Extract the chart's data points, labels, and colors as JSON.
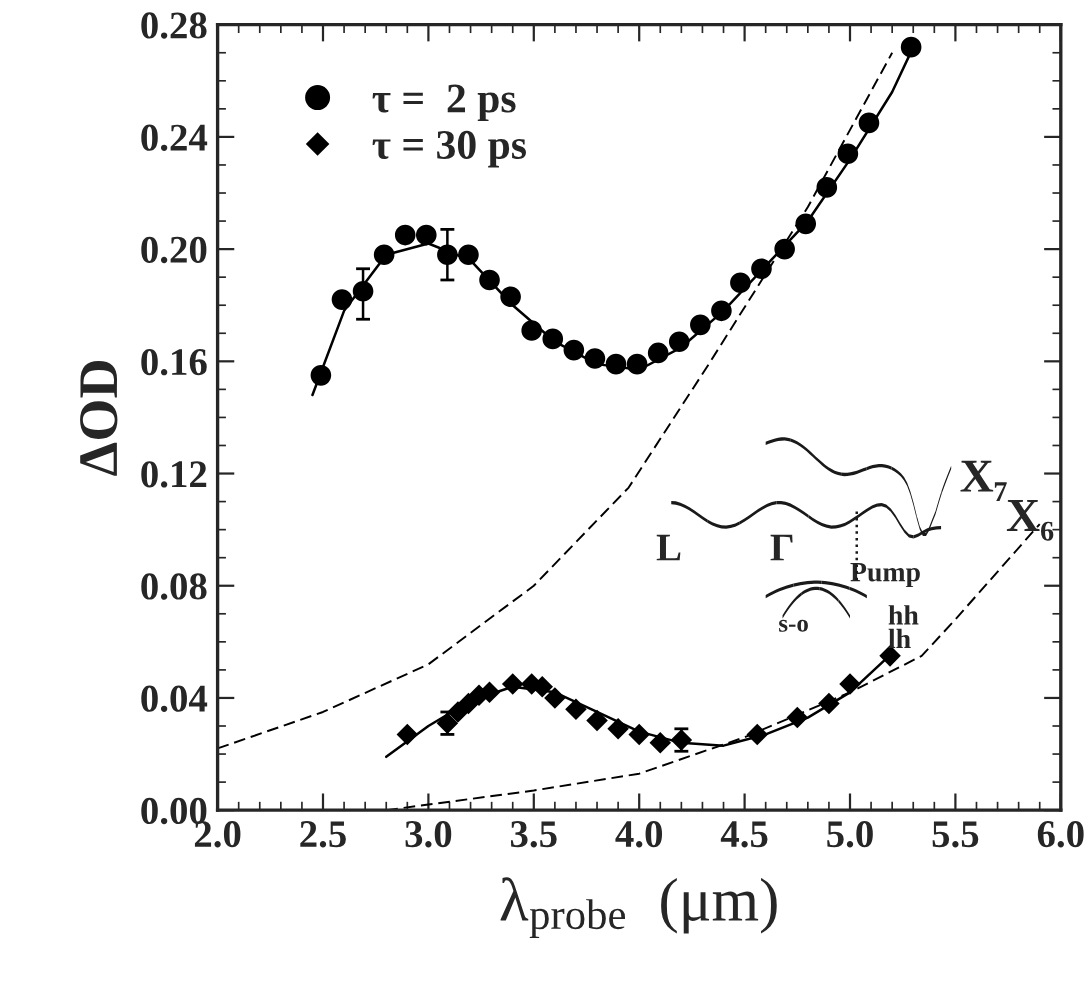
{
  "chart_data": {
    "type": "scatter",
    "xlabel": "λ$_{probe}$  (μm)",
    "ylabel": "ΔOD",
    "xlim": [
      2.0,
      6.0
    ],
    "ylim": [
      0.0,
      0.28
    ],
    "xticks": [
      {
        "value": 2.0,
        "label": "2.0"
      },
      {
        "value": 2.5,
        "label": "2.5"
      },
      {
        "value": 3.0,
        "label": "3.0"
      },
      {
        "value": 3.5,
        "label": "3.5"
      },
      {
        "value": 4.0,
        "label": "4.0"
      },
      {
        "value": 4.5,
        "label": "4.5"
      },
      {
        "value": 5.0,
        "label": "5.0"
      },
      {
        "value": 5.5,
        "label": "5.5"
      },
      {
        "value": 6.0,
        "label": "6.0"
      }
    ],
    "yticks": [
      {
        "value": 0.0,
        "label": "0.00"
      },
      {
        "value": 0.04,
        "label": "0.04"
      },
      {
        "value": 0.08,
        "label": "0.08"
      },
      {
        "value": 0.12,
        "label": "0.12"
      },
      {
        "value": 0.16,
        "label": "0.16"
      },
      {
        "value": 0.2,
        "label": "0.20"
      },
      {
        "value": 0.24,
        "label": "0.24"
      },
      {
        "value": 0.28,
        "label": "0.28"
      }
    ],
    "grid": false,
    "legend": "top left",
    "annotations": [
      "X₇",
      "X₆",
      "L",
      "Γ",
      "Pump",
      "hh",
      "lh",
      "s-o"
    ],
    "series": [
      {
        "name": "τ =  2 ps",
        "type": "scatter",
        "marker": "circle",
        "color": "#000000",
        "x": [
          2.49,
          2.59,
          2.69,
          2.79,
          2.89,
          2.99,
          3.09,
          3.19,
          3.29,
          3.39,
          3.49,
          3.59,
          3.69,
          3.79,
          3.89,
          3.99,
          4.09,
          4.19,
          4.29,
          4.39,
          4.48,
          4.58,
          4.69,
          4.79,
          4.89,
          4.99,
          5.09,
          5.29
        ],
        "values": [
          0.155,
          0.182,
          0.185,
          0.198,
          0.205,
          0.205,
          0.198,
          0.198,
          0.189,
          0.183,
          0.171,
          0.168,
          0.164,
          0.161,
          0.159,
          0.159,
          0.163,
          0.167,
          0.173,
          0.178,
          0.188,
          0.193,
          0.2,
          0.209,
          0.222,
          0.234,
          0.245,
          0.272
        ],
        "errors": [
          null,
          null,
          [
            0.175,
            0.193
          ],
          null,
          null,
          null,
          [
            0.189,
            0.207
          ],
          null,
          null,
          null,
          null,
          null,
          null,
          null,
          null,
          null,
          null,
          null,
          null,
          null,
          null,
          null,
          null,
          null,
          null,
          null,
          null,
          null
        ]
      },
      {
        "name": "τ = 30 ps",
        "type": "scatter",
        "marker": "diamond",
        "color": "#000000",
        "x": [
          2.9,
          3.09,
          3.14,
          3.19,
          3.24,
          3.29,
          3.4,
          3.49,
          3.54,
          3.6,
          3.7,
          3.8,
          3.9,
          4.0,
          4.1,
          4.2,
          4.56,
          4.75,
          4.9,
          5.0,
          5.19
        ],
        "values": [
          0.027,
          0.031,
          0.035,
          0.038,
          0.041,
          0.042,
          0.045,
          0.045,
          0.044,
          0.04,
          0.036,
          0.032,
          0.029,
          0.027,
          0.024,
          0.025,
          0.027,
          0.033,
          0.038,
          0.045,
          0.055
        ],
        "errors": [
          null,
          0.004,
          null,
          null,
          null,
          null,
          null,
          null,
          null,
          null,
          null,
          null,
          null,
          null,
          null,
          0.004,
          null,
          null,
          null,
          null,
          null
        ]
      },
      {
        "type": "line",
        "line_style": "solid",
        "color": "#000000",
        "x": [
          2.45,
          2.6,
          2.8,
          3.0,
          3.2,
          3.4,
          3.6,
          3.8,
          4.0,
          4.2,
          4.4,
          4.6,
          4.8,
          5.0,
          5.2,
          5.3
        ],
        "values": [
          0.148,
          0.178,
          0.198,
          0.202,
          0.196,
          0.18,
          0.167,
          0.159,
          0.157,
          0.165,
          0.178,
          0.194,
          0.21,
          0.232,
          0.256,
          0.272
        ]
      },
      {
        "type": "line",
        "line_style": "solid",
        "color": "#000000",
        "x": [
          2.8,
          3.0,
          3.2,
          3.4,
          3.6,
          3.8,
          4.0,
          4.2,
          4.4,
          4.6,
          4.8,
          5.0,
          5.2
        ],
        "values": [
          0.019,
          0.03,
          0.039,
          0.044,
          0.042,
          0.035,
          0.028,
          0.024,
          0.023,
          0.027,
          0.033,
          0.042,
          0.056
        ]
      },
      {
        "type": "line",
        "line_style": "dashed",
        "color": "#000000",
        "x": [
          2.0,
          2.5,
          3.0,
          3.5,
          3.95,
          4.33,
          4.8,
          5.2
        ],
        "values": [
          0.022,
          0.035,
          0.052,
          0.08,
          0.115,
          0.159,
          0.215,
          0.27
        ]
      },
      {
        "type": "line",
        "line_style": "dashed",
        "color": "#000000",
        "x": [
          2.8,
          3.0,
          3.5,
          4.0,
          4.5,
          5.0,
          5.34,
          5.5,
          5.9
        ],
        "values": [
          0.0,
          0.002,
          0.007,
          0.013,
          0.026,
          0.042,
          0.055,
          0.068,
          0.102
        ]
      }
    ]
  }
}
